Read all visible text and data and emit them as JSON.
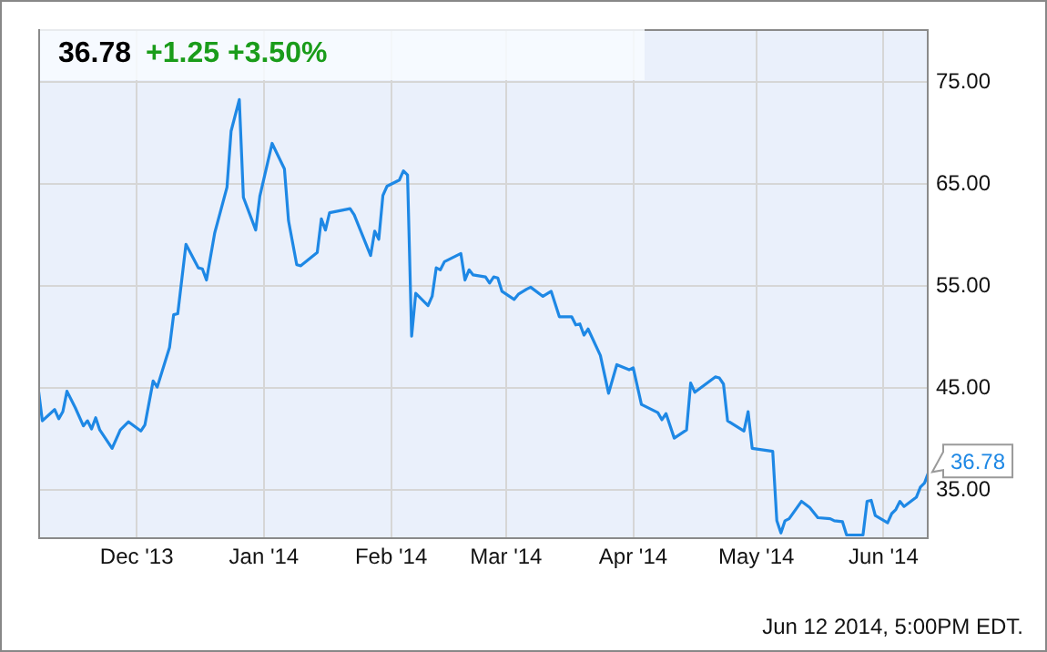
{
  "chart_data": {
    "type": "line",
    "title": "36.78",
    "subtitle": "+1.25  +3.50%",
    "x": [
      "2013-11-07",
      "2013-11-08",
      "2013-11-11",
      "2013-11-12",
      "2013-11-13",
      "2013-11-14",
      "2013-11-16",
      "2013-11-18",
      "2013-11-19",
      "2013-11-20",
      "2013-11-21",
      "2013-11-22",
      "2013-11-25",
      "2013-11-27",
      "2013-11-29",
      "2013-12-02",
      "2013-12-03",
      "2013-12-05",
      "2013-12-06",
      "2013-12-09",
      "2013-12-10",
      "2013-12-11",
      "2013-12-13",
      "2013-12-16",
      "2013-12-17",
      "2013-12-18",
      "2013-12-20",
      "2013-12-23",
      "2013-12-24",
      "2013-12-26",
      "2013-12-27",
      "2013-12-30",
      "2013-12-31",
      "2014-01-03",
      "2014-01-06",
      "2014-01-07",
      "2014-01-09",
      "2014-01-10",
      "2014-01-14",
      "2014-01-15",
      "2014-01-16",
      "2014-01-17",
      "2014-01-22",
      "2014-01-23",
      "2014-01-27",
      "2014-01-28",
      "2014-01-29",
      "2014-01-30",
      "2014-01-31",
      "2014-02-03",
      "2014-02-04",
      "2014-02-05",
      "2014-02-06",
      "2014-02-07",
      "2014-02-10",
      "2014-02-11",
      "2014-02-12",
      "2014-02-13",
      "2014-02-14",
      "2014-02-18",
      "2014-02-19",
      "2014-02-20",
      "2014-02-21",
      "2014-02-24",
      "2014-02-25",
      "2014-02-26",
      "2014-02-27",
      "2014-02-28",
      "2014-03-03",
      "2014-03-04",
      "2014-03-06",
      "2014-03-07",
      "2014-03-10",
      "2014-03-12",
      "2014-03-14",
      "2014-03-17",
      "2014-03-18",
      "2014-03-19",
      "2014-03-20",
      "2014-03-21",
      "2014-03-24",
      "2014-03-26",
      "2014-03-28",
      "2014-03-31",
      "2014-04-01",
      "2014-04-03",
      "2014-04-07",
      "2014-04-08",
      "2014-04-09",
      "2014-04-11",
      "2014-04-14",
      "2014-04-15",
      "2014-04-16",
      "2014-04-21",
      "2014-04-22",
      "2014-04-23",
      "2014-04-24",
      "2014-04-28",
      "2014-04-29",
      "2014-04-30",
      "2014-05-05",
      "2014-05-06",
      "2014-05-07",
      "2014-05-08",
      "2014-05-09",
      "2014-05-12",
      "2014-05-14",
      "2014-05-16",
      "2014-05-19",
      "2014-05-20",
      "2014-05-22",
      "2014-05-23",
      "2014-05-27",
      "2014-05-28",
      "2014-05-29",
      "2014-05-30",
      "2014-06-02",
      "2014-06-03",
      "2014-06-04",
      "2014-06-05",
      "2014-06-06",
      "2014-06-09",
      "2014-06-10",
      "2014-06-11",
      "2014-06-12"
    ],
    "values": [
      45.0,
      41.8,
      42.9,
      42.0,
      42.7,
      44.7,
      43.1,
      41.3,
      41.8,
      41.0,
      42.1,
      40.9,
      39.1,
      40.9,
      41.7,
      40.8,
      41.4,
      45.7,
      45.1,
      49.0,
      52.2,
      52.3,
      59.1,
      56.8,
      56.7,
      55.6,
      60.2,
      64.7,
      70.2,
      73.3,
      63.7,
      60.5,
      63.8,
      69.0,
      66.5,
      61.4,
      57.1,
      57.0,
      58.3,
      61.6,
      60.5,
      62.2,
      62.6,
      62.0,
      58.0,
      60.4,
      59.6,
      63.9,
      64.8,
      65.4,
      66.3,
      65.9,
      50.1,
      54.3,
      53.1,
      54.0,
      56.8,
      56.6,
      57.4,
      58.2,
      55.6,
      56.6,
      56.1,
      55.9,
      55.3,
      55.9,
      55.8,
      54.5,
      53.7,
      54.2,
      54.7,
      54.9,
      54.0,
      54.5,
      52.0,
      52.0,
      51.2,
      51.3,
      50.2,
      50.8,
      48.2,
      44.5,
      47.3,
      46.8,
      47.0,
      43.4,
      42.6,
      41.9,
      42.5,
      40.1,
      40.9,
      45.5,
      44.6,
      46.1,
      46.0,
      45.4,
      41.8,
      40.8,
      42.7,
      39.1,
      38.8,
      32.0,
      30.8,
      32.0,
      32.2,
      33.9,
      33.3,
      32.3,
      32.2,
      32.0,
      31.9,
      30.6,
      30.6,
      33.9,
      34.0,
      32.5,
      31.8,
      32.7,
      33.1,
      33.9,
      33.4,
      34.3,
      35.3,
      35.7,
      36.78
    ],
    "color": "#1e88e5",
    "xlim": [
      "2013-11-07",
      "2014-06-12"
    ],
    "xticks": [
      {
        "value": "2013-12-01",
        "label": "Dec '13"
      },
      {
        "value": "2014-01-01",
        "label": "Jan '14"
      },
      {
        "value": "2014-02-01",
        "label": "Feb '14"
      },
      {
        "value": "2014-03-01",
        "label": "Mar '14"
      },
      {
        "value": "2014-04-01",
        "label": "Apr '14"
      },
      {
        "value": "2014-05-01",
        "label": "May '14"
      },
      {
        "value": "2014-06-01",
        "label": "Jun '14"
      }
    ],
    "ylim": [
      30.2,
      80.2
    ],
    "yticks": [
      {
        "value": 35,
        "label": "35.00"
      },
      {
        "value": 45,
        "label": "45.00"
      },
      {
        "value": 55,
        "label": "55.00"
      },
      {
        "value": 65,
        "label": "65.00"
      },
      {
        "value": 75,
        "label": "75.00"
      }
    ],
    "grid": true,
    "marker": "none",
    "line_style": "solid",
    "annotations": [
      {
        "text": "36.78",
        "x": "2014-06-12",
        "y": 36.78
      },
      "Jun 12 2014, 5:00PM EDT."
    ]
  }
}
